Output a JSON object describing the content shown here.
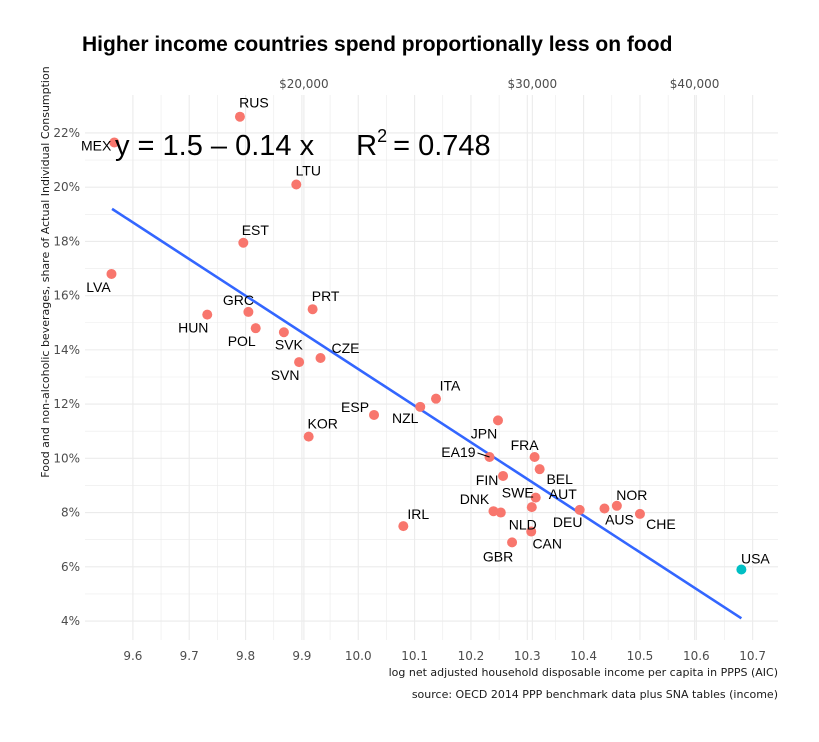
{
  "chart_data": {
    "type": "scatter",
    "title": "Higher income countries spend proportionally less on food",
    "xlabel": "log net adjusted household disposable income per capita in PPPS (AIC)",
    "ylabel": "Food and non-alcoholic beverages, share of Actual Individual Consumption",
    "caption": "source: OECD 2014 PPP benchmark data plus SNA tables (income)",
    "xlim": [
      9.515,
      10.745
    ],
    "ylim": [
      3.3,
      23.4
    ],
    "x_ticks": [
      {
        "value": 9.6,
        "label": "9.6"
      },
      {
        "value": 9.7,
        "label": "9.7"
      },
      {
        "value": 9.8,
        "label": "9.8"
      },
      {
        "value": 9.9,
        "label": "9.9"
      },
      {
        "value": 10.0,
        "label": "10.0"
      },
      {
        "value": 10.1,
        "label": "10.1"
      },
      {
        "value": 10.2,
        "label": "10.2"
      },
      {
        "value": 10.3,
        "label": "10.3"
      },
      {
        "value": 10.4,
        "label": "10.4"
      },
      {
        "value": 10.5,
        "label": "10.5"
      },
      {
        "value": 10.6,
        "label": "10.6"
      },
      {
        "value": 10.7,
        "label": "10.7"
      }
    ],
    "y_ticks": [
      {
        "value": 4,
        "label": "4%"
      },
      {
        "value": 6,
        "label": "6%"
      },
      {
        "value": 8,
        "label": "8%"
      },
      {
        "value": 10,
        "label": "10%"
      },
      {
        "value": 12,
        "label": "12%"
      },
      {
        "value": 14,
        "label": "14%"
      },
      {
        "value": 16,
        "label": "16%"
      },
      {
        "value": 18,
        "label": "18%"
      },
      {
        "value": 20,
        "label": "20%"
      },
      {
        "value": 22,
        "label": "22%"
      }
    ],
    "secondary_x_ticks": [
      {
        "value": 9.9035,
        "label": "$20,000"
      },
      {
        "value": 10.309,
        "label": "$30,000"
      },
      {
        "value": 10.597,
        "label": "$40,000"
      }
    ],
    "equation_label": {
      "lead": "y = 1.5 – 0.14 x",
      "r2_symbol": "R",
      "r2_power": "2",
      "r2_value": "= 0.748"
    },
    "fit_line": {
      "x": [
        9.563,
        10.68
      ],
      "y": [
        19.2,
        4.1
      ]
    },
    "colors": {
      "default": "#f8766d",
      "highlight": "#00bfc4",
      "fit": "#3366ff",
      "grid": "#ebebeb"
    },
    "points": [
      {
        "label": "RUS",
        "x": 9.79,
        "y": 22.6
      },
      {
        "label": "MEX",
        "x": 9.567,
        "y": 21.65
      },
      {
        "label": "LTU",
        "x": 9.89,
        "y": 20.1
      },
      {
        "label": "EST",
        "x": 9.796,
        "y": 17.95
      },
      {
        "label": "LVA",
        "x": 9.562,
        "y": 16.8
      },
      {
        "label": "HUN",
        "x": 9.732,
        "y": 15.3
      },
      {
        "label": "GRC",
        "x": 9.805,
        "y": 15.4
      },
      {
        "label": "PRT",
        "x": 9.919,
        "y": 15.5
      },
      {
        "label": "POL",
        "x": 9.818,
        "y": 14.8
      },
      {
        "label": "SVK",
        "x": 9.868,
        "y": 14.65
      },
      {
        "label": "CZE",
        "x": 9.933,
        "y": 13.7
      },
      {
        "label": "SVN",
        "x": 9.895,
        "y": 13.55
      },
      {
        "label": "ITA",
        "x": 10.138,
        "y": 12.2
      },
      {
        "label": "NZL",
        "x": 10.11,
        "y": 11.9
      },
      {
        "label": "ESP",
        "x": 10.028,
        "y": 11.6
      },
      {
        "label": "JPN",
        "x": 10.248,
        "y": 11.4
      },
      {
        "label": "KOR",
        "x": 9.912,
        "y": 10.8
      },
      {
        "label": "EA19",
        "x": 10.233,
        "y": 10.05
      },
      {
        "label": "FRA",
        "x": 10.313,
        "y": 10.05
      },
      {
        "label": "BEL",
        "x": 10.322,
        "y": 9.6
      },
      {
        "label": "FIN",
        "x": 10.257,
        "y": 9.35
      },
      {
        "label": "SWE",
        "x": 10.315,
        "y": 8.55
      },
      {
        "label": "AUT",
        "x": 10.308,
        "y": 8.2
      },
      {
        "label": "DEU",
        "x": 10.393,
        "y": 8.1
      },
      {
        "label": "NOR",
        "x": 10.459,
        "y": 8.25
      },
      {
        "label": "AUS",
        "x": 10.437,
        "y": 8.15
      },
      {
        "label": "CHE",
        "x": 10.5,
        "y": 7.95
      },
      {
        "label": "DNK",
        "x": 10.24,
        "y": 8.05
      },
      {
        "label": "NLD",
        "x": 10.253,
        "y": 8.0
      },
      {
        "label": "IRL",
        "x": 10.08,
        "y": 7.5
      },
      {
        "label": "CAN",
        "x": 10.307,
        "y": 7.3
      },
      {
        "label": "GBR",
        "x": 10.273,
        "y": 6.9
      },
      {
        "label": "USA",
        "x": 10.68,
        "y": 5.9,
        "highlight": true
      }
    ]
  }
}
